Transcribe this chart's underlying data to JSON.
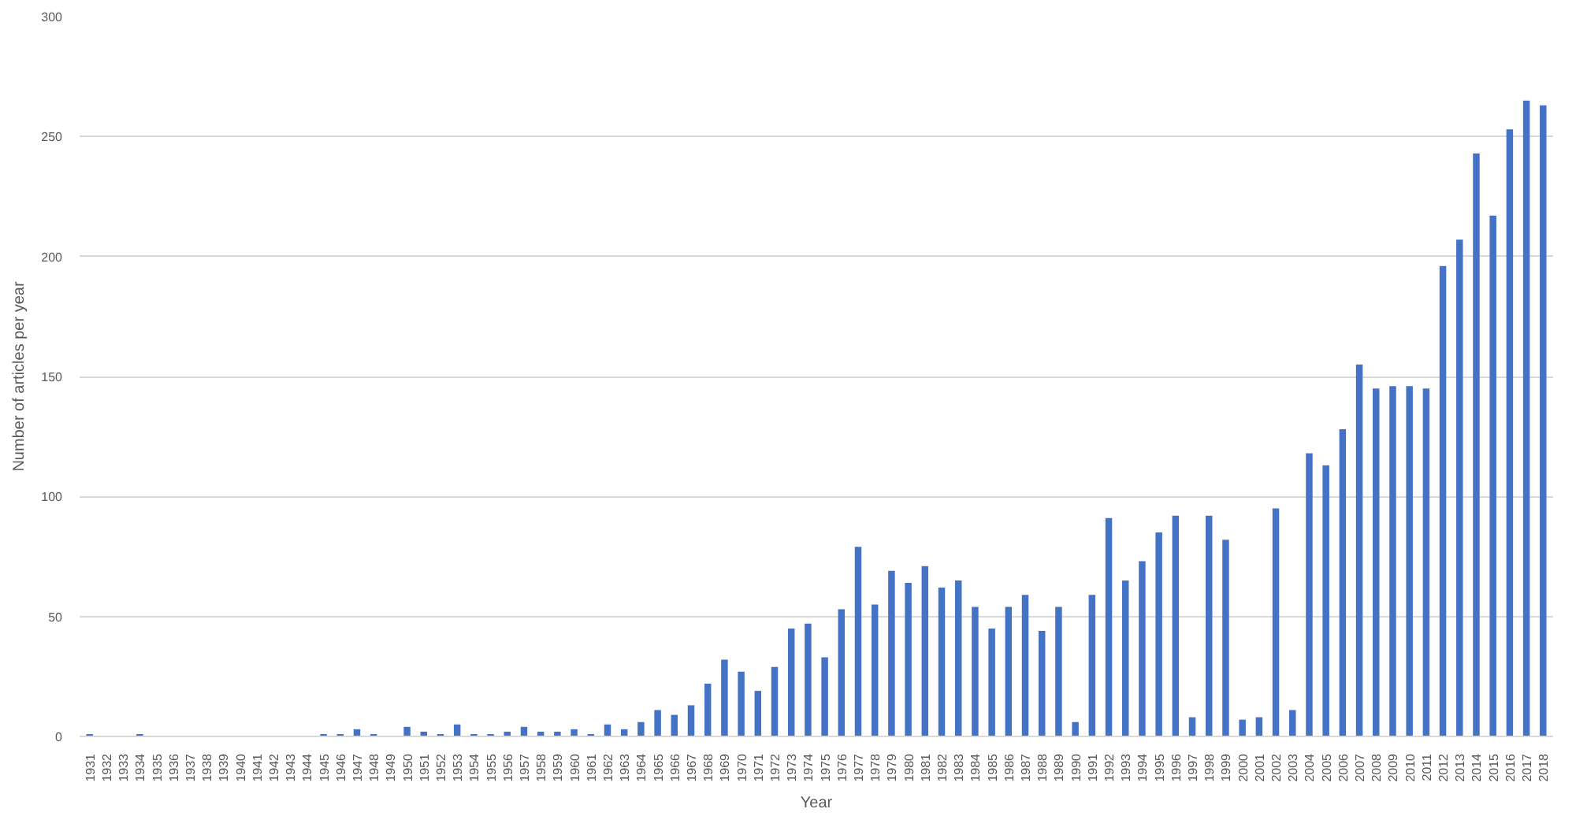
{
  "chart_data": {
    "type": "bar",
    "xlabel": "Year",
    "ylabel": "Number of articles per year",
    "categories": [
      "1931",
      "1932",
      "1933",
      "1934",
      "1935",
      "1936",
      "1937",
      "1938",
      "1939",
      "1940",
      "1941",
      "1942",
      "1943",
      "1944",
      "1945",
      "1946",
      "1947",
      "1948",
      "1949",
      "1950",
      "1951",
      "1952",
      "1953",
      "1954",
      "1955",
      "1956",
      "1957",
      "1958",
      "1959",
      "1960",
      "1961",
      "1962",
      "1963",
      "1964",
      "1965",
      "1966",
      "1967",
      "1968",
      "1969",
      "1970",
      "1971",
      "1972",
      "1973",
      "1974",
      "1975",
      "1976",
      "1977",
      "1978",
      "1979",
      "1980",
      "1981",
      "1982",
      "1983",
      "1984",
      "1985",
      "1986",
      "1987",
      "1988",
      "1989",
      "1990",
      "1991",
      "1992",
      "1993",
      "1994",
      "1995",
      "1996",
      "1997",
      "1998",
      "1999",
      "2000",
      "2001",
      "2002",
      "2003",
      "2004",
      "2005",
      "2006",
      "2007",
      "2008",
      "2009",
      "2010",
      "2011",
      "2012",
      "2013",
      "2014",
      "2015",
      "2016",
      "2017",
      "2018"
    ],
    "values": [
      1,
      0,
      0,
      1,
      0,
      0,
      0,
      0,
      0,
      0,
      0,
      0,
      0,
      0,
      1,
      1,
      3,
      1,
      0,
      4,
      2,
      1,
      5,
      1,
      1,
      2,
      4,
      2,
      2,
      3,
      1,
      5,
      3,
      6,
      11,
      9,
      13,
      22,
      32,
      27,
      19,
      29,
      45,
      47,
      33,
      53,
      79,
      55,
      69,
      64,
      71,
      62,
      65,
      54,
      45,
      54,
      59,
      44,
      54,
      6,
      59,
      91,
      65,
      73,
      85,
      92,
      8,
      92,
      82,
      7,
      8,
      95,
      11,
      118,
      113,
      128,
      155,
      145,
      146,
      146,
      145,
      196,
      207,
      243,
      217,
      253,
      265,
      263
    ],
    "color": "#4472c4",
    "ylim": [
      0,
      300
    ],
    "yticks": [
      0,
      50,
      100,
      150,
      200,
      250,
      300
    ],
    "grid": "y"
  }
}
